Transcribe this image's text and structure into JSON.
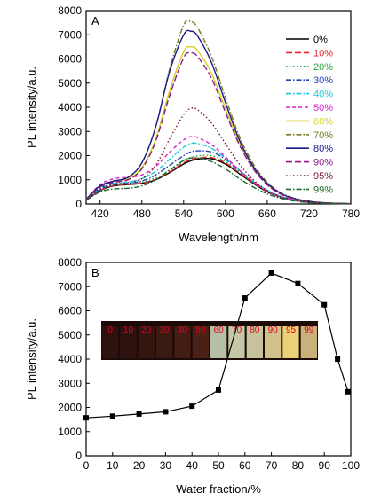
{
  "chart_data": [
    {
      "type": "line",
      "panel": "A",
      "xlabel": "Wavelength/nm",
      "ylabel": "PL intensity/a.u.",
      "xlim": [
        400,
        780
      ],
      "ylim": [
        0,
        8000
      ],
      "xticks": [
        420,
        480,
        540,
        600,
        660,
        720,
        780
      ],
      "yticks": [
        0,
        1000,
        2000,
        3000,
        4000,
        5000,
        6000,
        7000,
        8000
      ],
      "legend_position": "right",
      "x": [
        400,
        420,
        440,
        460,
        480,
        500,
        520,
        540,
        550,
        560,
        580,
        600,
        620,
        640,
        660,
        680,
        700,
        720,
        740,
        760,
        780
      ],
      "series": [
        {
          "name": "0%",
          "color": "#000000",
          "dash": "solid",
          "values": [
            150,
            550,
            750,
            800,
            850,
            1000,
            1300,
            1650,
            1780,
            1850,
            1870,
            1650,
            1250,
            850,
            500,
            280,
            150,
            80,
            40,
            20,
            10
          ]
        },
        {
          "name": "10%",
          "color": "#e8202a",
          "dash": "long",
          "values": [
            150,
            560,
            760,
            810,
            870,
            1020,
            1330,
            1700,
            1830,
            1900,
            1920,
            1700,
            1290,
            880,
            520,
            290,
            155,
            80,
            40,
            20,
            10
          ]
        },
        {
          "name": "20%",
          "color": "#22a838",
          "dash": "dot",
          "values": [
            160,
            580,
            780,
            830,
            900,
            1080,
            1400,
            1780,
            1920,
            1990,
            2000,
            1760,
            1330,
            900,
            540,
            300,
            160,
            85,
            42,
            22,
            10
          ]
        },
        {
          "name": "30%",
          "color": "#1f3fb5",
          "dash": "dashdot",
          "values": [
            170,
            600,
            800,
            850,
            950,
            1200,
            1600,
            2000,
            2150,
            2200,
            2150,
            1850,
            1380,
            930,
            560,
            310,
            165,
            85,
            42,
            22,
            10
          ]
        },
        {
          "name": "40%",
          "color": "#1fc7d6",
          "dash": "dashdot",
          "values": [
            180,
            650,
            850,
            900,
            1050,
            1350,
            1850,
            2350,
            2500,
            2500,
            2300,
            1900,
            1400,
            940,
            560,
            310,
            165,
            85,
            42,
            22,
            10
          ]
        },
        {
          "name": "50%",
          "color": "#e020d0",
          "dash": "short",
          "values": [
            200,
            800,
            1050,
            1100,
            1200,
            1550,
            2150,
            2650,
            2780,
            2750,
            2450,
            1950,
            1400,
            920,
            540,
            300,
            160,
            80,
            40,
            20,
            10
          ]
        },
        {
          "name": "60%",
          "color": "#d4d020",
          "dash": "solid",
          "values": [
            200,
            750,
            950,
            1050,
            1500,
            2700,
            4700,
            6300,
            6500,
            6350,
            5400,
            3950,
            2550,
            1500,
            820,
            420,
            210,
            100,
            50,
            25,
            12
          ]
        },
        {
          "name": "70%",
          "color": "#7a7a20",
          "dash": "dashdot",
          "values": [
            200,
            750,
            950,
            1100,
            1700,
            3200,
            5600,
            7400,
            7550,
            7300,
            6100,
            4400,
            2800,
            1650,
            900,
            460,
            230,
            110,
            55,
            28,
            12
          ]
        },
        {
          "name": "80%",
          "color": "#1a1a8a",
          "dash": "solid",
          "values": [
            200,
            750,
            950,
            1100,
            1700,
            3200,
            5500,
            7000,
            7150,
            6950,
            5850,
            4200,
            2650,
            1550,
            850,
            430,
            215,
            105,
            52,
            26,
            12
          ]
        },
        {
          "name": "90%",
          "color": "#8a1a8a",
          "dash": "long",
          "values": [
            180,
            700,
            900,
            1000,
            1450,
            2600,
            4500,
            6050,
            6250,
            6100,
            5200,
            3800,
            2450,
            1450,
            790,
            400,
            200,
            98,
            48,
            24,
            11
          ]
        },
        {
          "name": "95%",
          "color": "#7a1a2a",
          "dash": "dot",
          "values": [
            170,
            650,
            820,
            880,
            1050,
            1600,
            2700,
            3700,
            3950,
            3900,
            3350,
            2500,
            1650,
            1000,
            560,
            290,
            150,
            75,
            38,
            20,
            10
          ]
        },
        {
          "name": "99%",
          "color": "#1a6a2a",
          "dash": "dashdot",
          "values": [
            150,
            500,
            620,
            650,
            750,
            1000,
            1400,
            1800,
            1900,
            1900,
            1750,
            1450,
            1050,
            700,
            420,
            230,
            120,
            60,
            30,
            15,
            8
          ]
        }
      ]
    },
    {
      "type": "line",
      "panel": "B",
      "markers": "square",
      "xlabel": "Water fraction/%",
      "ylabel": "PL intensity/a.u.",
      "xlim": [
        0,
        100
      ],
      "ylim": [
        0,
        8000
      ],
      "xticks": [
        0,
        10,
        20,
        30,
        40,
        50,
        60,
        70,
        80,
        90,
        100
      ],
      "yticks": [
        0,
        1000,
        2000,
        3000,
        4000,
        5000,
        6000,
        7000,
        8000
      ],
      "x": [
        0,
        10,
        20,
        30,
        40,
        50,
        60,
        70,
        80,
        90,
        95,
        99
      ],
      "values": [
        1570,
        1640,
        1730,
        1820,
        2050,
        2720,
        6530,
        7560,
        7130,
        6250,
        4000,
        2650
      ],
      "inset_photo": {
        "labels": [
          "0",
          "10",
          "20",
          "30",
          "40",
          "50",
          "60",
          "70",
          "80",
          "90",
          "95",
          "99"
        ],
        "vial_colors": [
          "#2e1210",
          "#2e1210",
          "#33160f",
          "#3a1a12",
          "#431d14",
          "#4a2114",
          "#b7bea6",
          "#c4c8a6",
          "#c5c29c",
          "#d0c28a",
          "#ead076",
          "#c8b27a"
        ]
      }
    }
  ]
}
